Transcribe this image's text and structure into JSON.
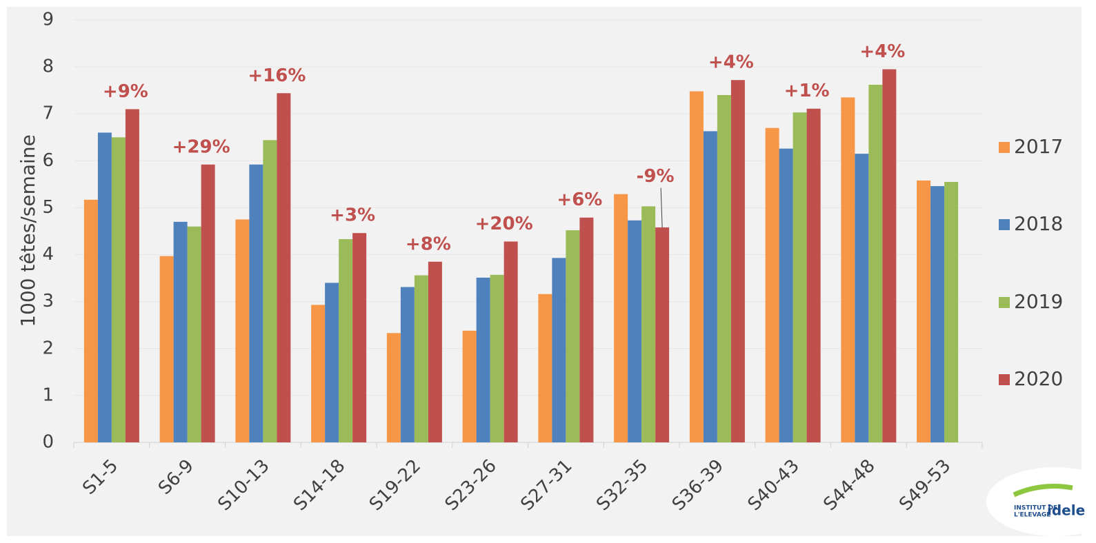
{
  "chart_data": {
    "type": "bar",
    "y_axis_label": "1000 têtes/semaine",
    "categories": [
      "S1-5",
      "S6-9",
      "S10-13",
      "S14-18",
      "S19-22",
      "S23-26",
      "S27-31",
      "S32-35",
      "S36-39",
      "S40-43",
      "S44-48",
      "S49-53"
    ],
    "series": [
      {
        "name": "2017",
        "color": "#f79646",
        "values": [
          5.17,
          3.97,
          4.75,
          2.93,
          2.33,
          2.38,
          3.16,
          5.29,
          7.48,
          6.7,
          7.35,
          5.58
        ]
      },
      {
        "name": "2018",
        "color": "#4f81bd",
        "values": [
          6.6,
          4.7,
          5.92,
          3.4,
          3.31,
          3.51,
          3.93,
          4.73,
          6.63,
          6.26,
          6.15,
          5.46
        ]
      },
      {
        "name": "2019",
        "color": "#9bbb59",
        "values": [
          6.5,
          4.6,
          6.44,
          4.33,
          3.56,
          3.57,
          4.52,
          5.03,
          7.4,
          7.03,
          7.62,
          5.55
        ]
      },
      {
        "name": "2020",
        "color": "#c0504d",
        "values": [
          7.1,
          5.92,
          7.44,
          4.46,
          3.85,
          4.28,
          4.79,
          4.58,
          7.72,
          7.11,
          7.95,
          null
        ]
      }
    ],
    "change_labels": [
      "+9%",
      "+29%",
      "+16%",
      "+3%",
      "+8%",
      "+20%",
      "+6%",
      "-9%",
      "+4%",
      "+1%",
      "+4%",
      null
    ],
    "ylim": [
      0,
      9
    ],
    "yticks": [
      0,
      1,
      2,
      3,
      4,
      5,
      6,
      7,
      8,
      9
    ],
    "grid": true,
    "legend": "right",
    "logo": {
      "line1": "INSTITUT DE",
      "line2": "L'ELEVAGE",
      "brand": "idele"
    }
  }
}
